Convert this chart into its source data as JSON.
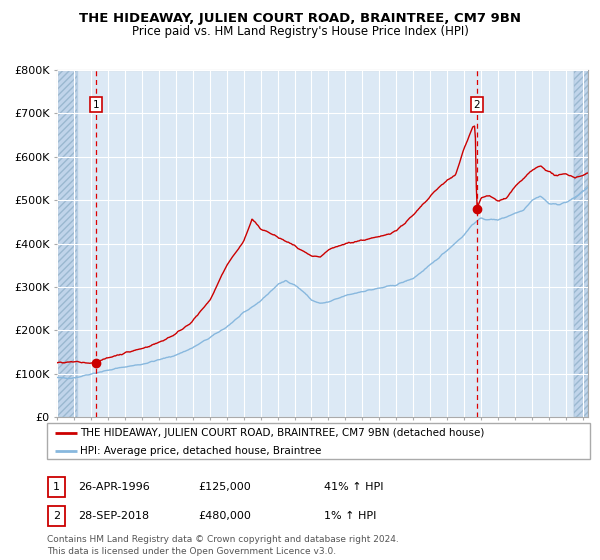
{
  "title": "THE HIDEAWAY, JULIEN COURT ROAD, BRAINTREE, CM7 9BN",
  "subtitle": "Price paid vs. HM Land Registry's House Price Index (HPI)",
  "sale1_date": 1996.32,
  "sale1_price": 125000,
  "sale1_label": "1",
  "sale2_date": 2018.74,
  "sale2_price": 480000,
  "sale2_label": "2",
  "ylim": [
    0,
    800000
  ],
  "xlim_start": 1994.0,
  "xlim_end": 2025.3,
  "bg_color": "#dce9f5",
  "hatch_color": "#c0d4ea",
  "grid_color": "#ffffff",
  "red_line_color": "#cc0000",
  "blue_line_color": "#88b8de",
  "legend_red_label": "THE HIDEAWAY, JULIEN COURT ROAD, BRAINTREE, CM7 9BN (detached house)",
  "legend_blue_label": "HPI: Average price, detached house, Braintree",
  "footer": "Contains HM Land Registry data © Crown copyright and database right 2024.\nThis data is licensed under the Open Government Licence v3.0.",
  "ytick_labels": [
    "£0",
    "£100K",
    "£200K",
    "£300K",
    "£400K",
    "£500K",
    "£600K",
    "£700K",
    "£800K"
  ],
  "ytick_values": [
    0,
    100000,
    200000,
    300000,
    400000,
    500000,
    600000,
    700000,
    800000
  ],
  "title_fontsize": 9.5,
  "subtitle_fontsize": 8.5,
  "axis_fontsize": 8,
  "legend_fontsize": 7.5,
  "annot_fontsize": 8,
  "footer_fontsize": 6.5
}
